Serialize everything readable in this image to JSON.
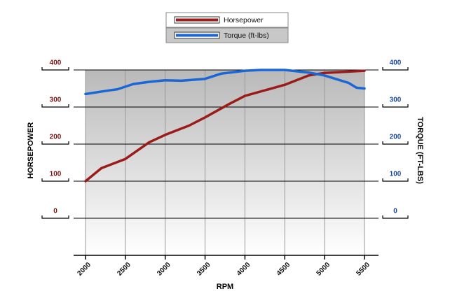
{
  "chart_data": {
    "type": "line",
    "xlabel": "RPM",
    "ylabel": "HORSEPOWER",
    "y2label": "TORQUE (FT-LBS)",
    "xlim": [
      2000,
      5500
    ],
    "xticks": [
      2000,
      2500,
      3000,
      3500,
      4000,
      4500,
      5000,
      5500
    ],
    "ylim": [
      -100,
      400
    ],
    "yticks": [
      0,
      100,
      200,
      300,
      400
    ],
    "y2lim": [
      -100,
      400
    ],
    "y2ticks": [
      0,
      100,
      200,
      300,
      400
    ],
    "grid": true,
    "legend": "top",
    "series": [
      {
        "name": "Horsepower",
        "color": "#9b1b1b",
        "x": [
          2000,
          2200,
          2500,
          2800,
          3000,
          3300,
          3500,
          3800,
          4000,
          4500,
          4800,
          5000,
          5500
        ],
        "values": [
          100,
          135,
          160,
          205,
          225,
          250,
          272,
          308,
          330,
          360,
          385,
          392,
          398
        ]
      },
      {
        "name": "Torque (ft-lbs)",
        "color": "#1a66d6",
        "axis": "y2",
        "x": [
          2000,
          2300,
          2400,
          2600,
          2800,
          3000,
          3200,
          3500,
          3700,
          4000,
          4200,
          4500,
          4800,
          5000,
          5300,
          5400,
          5500
        ],
        "values": [
          335,
          345,
          348,
          362,
          368,
          372,
          371,
          376,
          390,
          398,
          400,
          400,
          393,
          385,
          365,
          352,
          350
        ]
      }
    ]
  }
}
